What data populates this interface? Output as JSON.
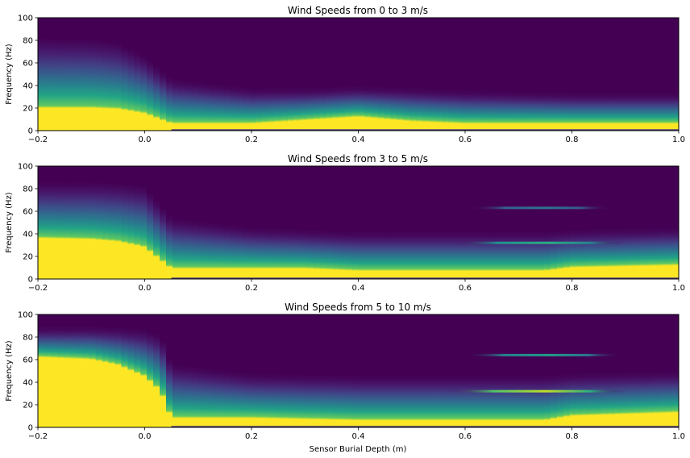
{
  "chart_data": [
    {
      "type": "heatmap",
      "title": "Wind Speeds from 0 to 3 m/s",
      "xlabel": "",
      "ylabel": "Frequency (Hz)",
      "xlim": [
        -0.2,
        1.0
      ],
      "ylim": [
        0,
        100
      ],
      "xticks": [
        "−0.2",
        "0.0",
        "0.2",
        "0.4",
        "0.6",
        "0.8",
        "1.0"
      ],
      "xtick_values": [
        -0.2,
        0.0,
        0.2,
        0.4,
        0.6,
        0.8,
        1.0
      ],
      "yticks": [
        "0",
        "20",
        "40",
        "60",
        "80",
        "100"
      ],
      "ytick_values": [
        0,
        20,
        40,
        60,
        80,
        100
      ],
      "colormap": "viridis",
      "grid": false,
      "profile": [
        [
          -0.2,
          20,
          78
        ],
        [
          -0.1,
          20,
          77
        ],
        [
          -0.05,
          19,
          74
        ],
        [
          0.0,
          15,
          62
        ],
        [
          0.05,
          6,
          42
        ],
        [
          0.2,
          6,
          34
        ],
        [
          0.3,
          9,
          34
        ],
        [
          0.4,
          12,
          36
        ],
        [
          0.5,
          8,
          34
        ],
        [
          0.6,
          6,
          32
        ],
        [
          0.8,
          6,
          30
        ],
        [
          1.0,
          6,
          30
        ]
      ],
      "lines": []
    },
    {
      "type": "heatmap",
      "title": "Wind Speeds from 3 to 5 m/s",
      "xlabel": "",
      "ylabel": "Frequency (Hz)",
      "xlim": [
        -0.2,
        1.0
      ],
      "ylim": [
        0,
        100
      ],
      "xticks": [
        "−0.2",
        "0.0",
        "0.2",
        "0.4",
        "0.6",
        "0.8",
        "1.0"
      ],
      "xtick_values": [
        -0.2,
        0.0,
        0.2,
        0.4,
        0.6,
        0.8,
        1.0
      ],
      "yticks": [
        "0",
        "20",
        "40",
        "60",
        "80",
        "100"
      ],
      "ytick_values": [
        0,
        20,
        40,
        60,
        80,
        100
      ],
      "colormap": "viridis",
      "grid": false,
      "profile": [
        [
          -0.2,
          36,
          82
        ],
        [
          -0.1,
          35,
          82
        ],
        [
          -0.05,
          33,
          81
        ],
        [
          0.0,
          28,
          78
        ],
        [
          0.05,
          9,
          50
        ],
        [
          0.2,
          9,
          42
        ],
        [
          0.3,
          9,
          40
        ],
        [
          0.4,
          7,
          38
        ],
        [
          0.6,
          7,
          38
        ],
        [
          0.75,
          7,
          38
        ],
        [
          0.8,
          10,
          40
        ],
        [
          1.0,
          12,
          42
        ]
      ],
      "lines": [
        {
          "y": 32,
          "x0": 0.58,
          "x1": 0.9,
          "intensity": 0.62
        },
        {
          "y": 63,
          "x0": 0.61,
          "x1": 0.87,
          "intensity": 0.38
        }
      ]
    },
    {
      "type": "heatmap",
      "title": "Wind Speeds from 5 to 10 m/s",
      "xlabel": "Sensor Burial Depth (m)",
      "ylabel": "Frequency (Hz)",
      "xlim": [
        -0.2,
        1.0
      ],
      "ylim": [
        0,
        100
      ],
      "xticks": [
        "−0.2",
        "0.0",
        "0.2",
        "0.4",
        "0.6",
        "0.8",
        "1.0"
      ],
      "xtick_values": [
        -0.2,
        0.0,
        0.2,
        0.4,
        0.6,
        0.8,
        1.0
      ],
      "yticks": [
        "0",
        "20",
        "40",
        "60",
        "80",
        "100"
      ],
      "ytick_values": [
        0,
        20,
        40,
        60,
        80,
        100
      ],
      "colormap": "viridis",
      "grid": false,
      "profile": [
        [
          -0.2,
          62,
          86
        ],
        [
          -0.1,
          60,
          86
        ],
        [
          -0.05,
          55,
          85
        ],
        [
          0.0,
          45,
          83
        ],
        [
          0.03,
          32,
          78
        ],
        [
          0.05,
          8,
          52
        ],
        [
          0.2,
          8,
          44
        ],
        [
          0.4,
          6,
          42
        ],
        [
          0.6,
          6,
          42
        ],
        [
          0.75,
          6,
          42
        ],
        [
          0.8,
          10,
          44
        ],
        [
          1.0,
          13,
          46
        ]
      ],
      "lines": [
        {
          "y": 32,
          "x0": 0.57,
          "x1": 0.9,
          "intensity": 0.9
        },
        {
          "y": 64,
          "x0": 0.6,
          "x1": 0.89,
          "intensity": 0.55
        }
      ]
    }
  ]
}
